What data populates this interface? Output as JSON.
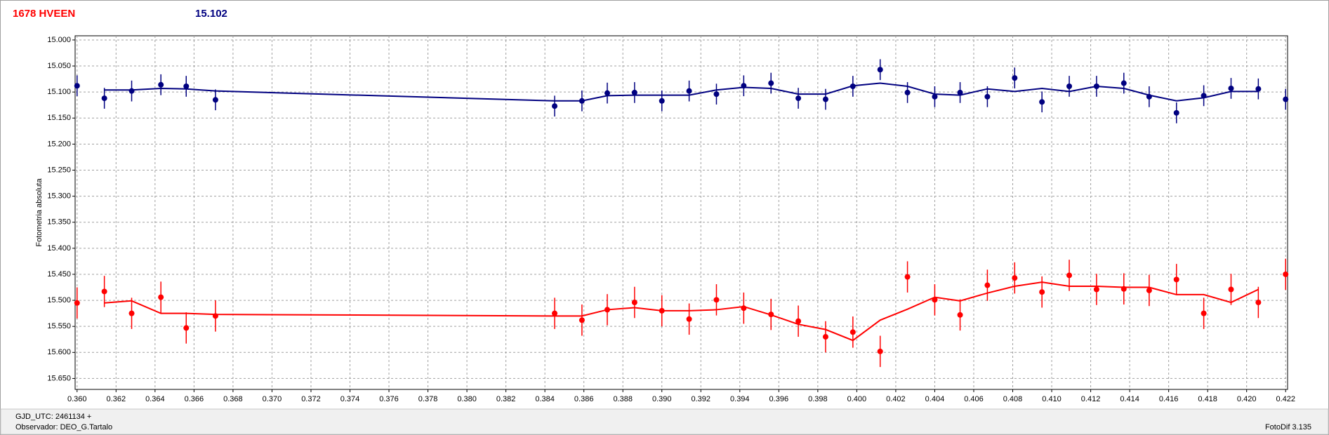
{
  "header": {
    "object": "1678 HVEEN",
    "magnitude": "15.102"
  },
  "chart_data": {
    "type": "scatter",
    "y_label": "Fotometria absoluta",
    "y_inverted": true,
    "grid": true,
    "xlim": [
      0.3599,
      0.4221
    ],
    "ylim": [
      14.992,
      15.671
    ],
    "xticks": [
      {
        "value": 0.36,
        "label": "0.360"
      },
      0.362,
      0.364,
      0.366,
      0.368,
      {
        "value": 0.37,
        "label": "0.370"
      },
      0.372,
      0.374,
      0.376,
      0.378,
      {
        "value": 0.38,
        "label": "0.380"
      },
      0.382,
      0.384,
      0.386,
      0.388,
      {
        "value": 0.39,
        "label": "0.390"
      },
      0.392,
      0.394,
      0.396,
      0.398,
      {
        "value": 0.4,
        "label": "0.400"
      },
      0.402,
      0.404,
      0.406,
      0.408,
      {
        "value": 0.41,
        "label": "0.410"
      },
      0.412,
      0.414,
      0.416,
      0.418,
      {
        "value": 0.42,
        "label": "0.420"
      },
      0.422
    ],
    "yticks": [
      {
        "value": 15.0,
        "label": "15.000"
      },
      {
        "value": 15.05,
        "label": "15.050"
      },
      {
        "value": 15.1,
        "label": "15.100"
      },
      {
        "value": 15.15,
        "label": "15.150"
      },
      {
        "value": 15.2,
        "label": "15.200"
      },
      {
        "value": 15.25,
        "label": "15.250"
      },
      {
        "value": 15.3,
        "label": "15.300"
      },
      {
        "value": 15.35,
        "label": "15.350"
      },
      {
        "value": 15.4,
        "label": "15.400"
      },
      {
        "value": 15.45,
        "label": "15.450"
      },
      {
        "value": 15.5,
        "label": "15.500"
      },
      {
        "value": 15.55,
        "label": "15.550"
      },
      {
        "value": 15.6,
        "label": "15.600"
      },
      {
        "value": 15.65,
        "label": "15.650"
      }
    ],
    "x": [
      0.36,
      0.3614,
      0.3628,
      0.3643,
      0.3656,
      0.3671,
      0.3845,
      0.3859,
      0.3872,
      0.3886,
      0.39,
      0.3914,
      0.3928,
      0.3942,
      0.3956,
      0.397,
      0.3984,
      0.3998,
      0.4012,
      0.4026,
      0.404,
      0.4053,
      0.4067,
      0.4081,
      0.4095,
      0.4109,
      0.4123,
      0.4137,
      0.415,
      0.4164,
      0.4178,
      0.4192,
      0.4206,
      0.422
    ],
    "series": [
      {
        "color": "#000080",
        "values": [
          15.088,
          15.112,
          15.098,
          15.086,
          15.089,
          15.115,
          15.127,
          15.117,
          15.102,
          15.101,
          15.117,
          15.098,
          15.104,
          15.088,
          15.083,
          15.112,
          15.114,
          15.089,
          15.057,
          15.101,
          15.109,
          15.101,
          15.109,
          15.073,
          15.119,
          15.089,
          15.089,
          15.083,
          15.109,
          15.14,
          15.107,
          15.093,
          15.094,
          15.114
        ],
        "errors": [
          0.02,
          0.02,
          0.02,
          0.02,
          0.02,
          0.02,
          0.02,
          0.02,
          0.02,
          0.02,
          0.02,
          0.02,
          0.02,
          0.02,
          0.02,
          0.02,
          0.02,
          0.02,
          0.02,
          0.02,
          0.02,
          0.02,
          0.02,
          0.02,
          0.02,
          0.02,
          0.02,
          0.02,
          0.02,
          0.02,
          0.02,
          0.02,
          0.02,
          0.02
        ],
        "fit": [
          null,
          15.096,
          15.096,
          15.093,
          15.094,
          15.098,
          15.117,
          15.117,
          15.107,
          15.106,
          15.106,
          15.106,
          15.096,
          15.091,
          15.093,
          15.104,
          15.104,
          15.088,
          15.083,
          15.089,
          15.104,
          15.106,
          15.094,
          15.099,
          15.093,
          15.099,
          15.089,
          15.093,
          15.106,
          15.117,
          15.111,
          15.099,
          15.099,
          null
        ]
      },
      {
        "color": "#ff0000",
        "values": [
          15.505,
          15.483,
          15.525,
          15.494,
          15.553,
          15.53,
          15.525,
          15.538,
          15.518,
          15.504,
          15.52,
          15.536,
          15.499,
          15.515,
          15.527,
          15.54,
          15.57,
          15.561,
          15.598,
          15.455,
          15.499,
          15.528,
          15.471,
          15.457,
          15.484,
          15.452,
          15.479,
          15.478,
          15.481,
          15.46,
          15.525,
          15.479,
          15.504,
          15.45
        ],
        "errors": [
          0.03,
          0.03,
          0.03,
          0.03,
          0.03,
          0.03,
          0.03,
          0.03,
          0.03,
          0.03,
          0.03,
          0.03,
          0.03,
          0.03,
          0.03,
          0.03,
          0.03,
          0.03,
          0.03,
          0.03,
          0.03,
          0.03,
          0.03,
          0.03,
          0.03,
          0.03,
          0.03,
          0.03,
          0.03,
          0.03,
          0.03,
          0.03,
          0.03,
          0.03
        ],
        "fit": [
          null,
          15.505,
          15.501,
          15.525,
          15.525,
          15.527,
          15.53,
          15.53,
          15.518,
          15.514,
          15.52,
          15.52,
          15.518,
          15.512,
          15.528,
          15.546,
          15.556,
          15.577,
          15.538,
          15.517,
          15.494,
          15.501,
          15.486,
          15.473,
          15.465,
          15.473,
          15.473,
          15.475,
          15.475,
          15.489,
          15.489,
          15.504,
          15.479,
          null
        ]
      }
    ]
  },
  "footer": {
    "gjd": "GJD_UTC: 2461134 +",
    "observer": "Observador: DEO_G.Tartalo",
    "version": "FotoDif 3.135"
  }
}
